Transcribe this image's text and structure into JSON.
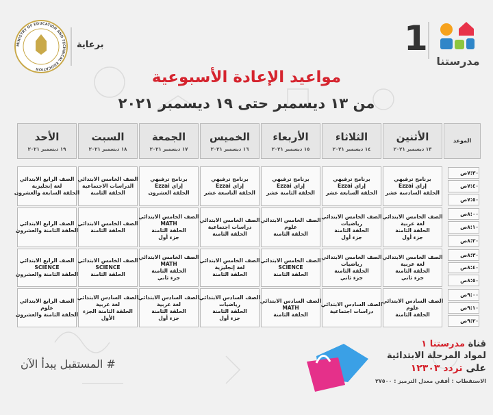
{
  "header": {
    "channel_number": "1",
    "brand": "مدرستنا",
    "sponsor": "برعاية",
    "ministry": "MINISTRY OF EDUCATION AND TECHNICAL EDUCATION"
  },
  "title": "مواعيد الإعادة الأسبوعية",
  "subtitle": "من ١٣ ديسمبر حتى ١٩ ديسمبر ٢٠٢١",
  "table": {
    "time_header": "الموعد",
    "days": [
      {
        "name": "الأثنين",
        "date": "١٣ ديسمبر ٢٠٢١"
      },
      {
        "name": "الثلاثاء",
        "date": "١٤ ديسمبر ٢٠٢١"
      },
      {
        "name": "الأربعاء",
        "date": "١٥ ديسمبر ٢٠٢١"
      },
      {
        "name": "الخميس",
        "date": "١٦ ديسمبر ٢٠٢١"
      },
      {
        "name": "الجمعة",
        "date": "١٧ ديسمبر ٢٠٢١"
      },
      {
        "name": "السبت",
        "date": "١٨ ديسمبر ٢٠٢١"
      },
      {
        "name": "الأحد",
        "date": "١٩ ديسمبر ٢٠٢١"
      }
    ],
    "groups": [
      {
        "times": [
          "٧:٣٠ص",
          "٧:٤٠ص",
          "٧:٥٠ص"
        ],
        "cells": [
          [
            "برنامج ترفيهي",
            "إزاي Ezzai",
            "الحلقة السادسة عشر"
          ],
          [
            "برنامج ترفيهي",
            "إزاي Ezzai",
            "الحلقة السابعة عشر"
          ],
          [
            "برنامج ترفيهي",
            "إزاي Ezzai",
            "الحلقة الثامنة عشر"
          ],
          [
            "برنامج ترفيهي",
            "إزاي Ezzai",
            "الحلقة التاسعة عشر"
          ],
          [
            "برنامج ترفيهي",
            "إزاي Ezzai",
            "الحلقة العشرون"
          ],
          [
            "الصف الخامس الابتدائي",
            "الدراسات الاجتماعية",
            "الحلقة الثامنة"
          ],
          [
            "الصف الرابع الابتدائي",
            "لغة إنجليزية",
            "الحلقة السابعة والعشرون"
          ]
        ]
      },
      {
        "times": [
          "٨:٠٠ص",
          "٨:١٠ص",
          "٨:٢٠ص"
        ],
        "cells": [
          [
            "الصف الخامس الابتدائي",
            "لغة عربية",
            "الحلقة الثامنة",
            "جزء أول"
          ],
          [
            "الصف الخامس الابتدائي",
            "رياضيات",
            "الحلقة الثامنة",
            "جزء أول"
          ],
          [
            "الصف الخامس الابتدائي",
            "علوم",
            "الحلقة الثامنة"
          ],
          [
            "الصف الخامس الابتدائي",
            "دراسات اجتماعية",
            "الحلقة الثامنة"
          ],
          [
            "الصف الخامس الابتدائي",
            "MATH",
            "الحلقة الثامنة",
            "جزء أول"
          ],
          [
            "الصف الخامس الابتدائي",
            "الحلقة الثامنة"
          ],
          [
            "الصف الرابع الابتدائي",
            "الحلقة الثامنة والعشرون"
          ]
        ]
      },
      {
        "times": [
          "٨:٣٠ص",
          "٨:٤٠ص",
          "٨:٥٠ص"
        ],
        "cells": [
          [
            "الصف الخامس الابتدائي",
            "لغة عربية",
            "الحلقة الثامنة",
            "جزء ثاني"
          ],
          [
            "الصف الخامس الابتدائي",
            "رياضيات",
            "الحلقة الثامنة",
            "جزء ثاني"
          ],
          [
            "الصف الخامس الابتدائي",
            "SCIENCE",
            "الحلقة الثامنة"
          ],
          [
            "الصف الخامس الابتدائي",
            "لغة إنجليزية",
            "الحلقة الثامنة"
          ],
          [
            "الصف الخامس الابتدائي",
            "MATH",
            "الحلقة الثامنة",
            "جزء ثاني"
          ],
          [
            "الصف الخامس الابتدائي",
            "SCIENCE",
            "الحلقة الثامنة"
          ],
          [
            "الصف الرابع الابتدائي",
            "SCIENCE",
            "الحلقة الثامنة والعشرون"
          ]
        ]
      },
      {
        "times": [
          "٩:٠٠ص",
          "٩:١٠ص",
          "٩:٢٠ص"
        ],
        "cells": [
          [
            "الصف السادس الابتدائي",
            "علوم",
            "الحلقة الثامنة"
          ],
          [
            "الصف السادس الابتدائي",
            "دراسات اجتماعية"
          ],
          [
            "الصف السادس الابتدائي",
            "MATH",
            "الحلقة الثامنة"
          ],
          [
            "الصف السادس الابتدائي",
            "رياضيات",
            "الحلقة الثامنة",
            "جزء أول"
          ],
          [
            "الصف السادس الابتدائي",
            "لغة عربية",
            "الحلقة الثامنة",
            "جزء أول"
          ],
          [
            "الصف السادس الابتدائي",
            "لغة عربية",
            "الحلقة الثامنة  الجزء",
            "الأول"
          ],
          [
            "الصف الرابع الابتدائي",
            "علوم",
            "الحلقة الثامنة والعشرون"
          ]
        ]
      }
    ]
  },
  "footer": {
    "channel_label": "قناة",
    "channel_name": "مدرستنا ١",
    "subjects": "لمواد المرحلة الابتدائية",
    "freq_label": "على",
    "freq": "تردد ١٢٣٠٣",
    "technical": "الاستقطاب : أفقي معدل الترميز : ٢٧٥٠٠",
    "hashtag": "# المستقبل يبدأ الآن"
  }
}
